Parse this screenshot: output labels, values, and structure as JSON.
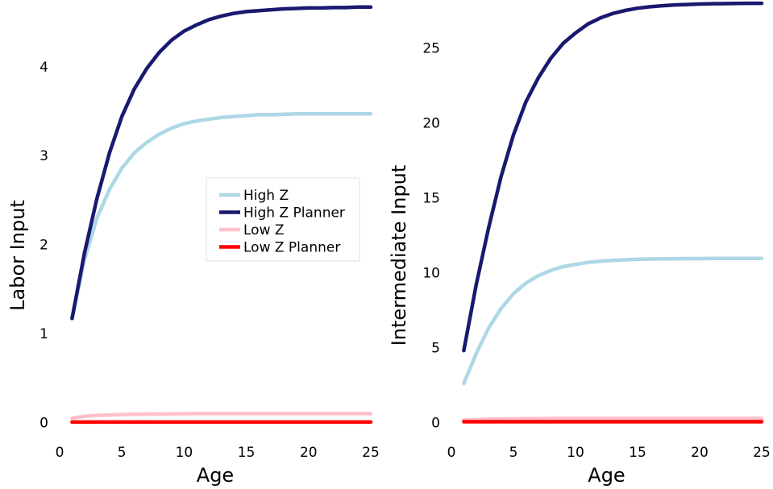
{
  "chart_data": [
    {
      "type": "line",
      "title": "",
      "xlabel": "Age",
      "ylabel": "Labor Input",
      "xlim": [
        0,
        25
      ],
      "ylim": [
        -0.05,
        4.75
      ],
      "xticks": [
        0,
        5,
        10,
        15,
        20,
        25
      ],
      "yticks": [
        0,
        1,
        2,
        3,
        4
      ],
      "grid": false,
      "legend": "center-right",
      "x": [
        1,
        2,
        3,
        4,
        5,
        6,
        7,
        8,
        9,
        10,
        11,
        12,
        13,
        14,
        15,
        16,
        17,
        18,
        19,
        20,
        21,
        22,
        23,
        24,
        25
      ],
      "series": [
        {
          "name": "High Z",
          "color": "#add8e6",
          "values": [
            1.17,
            1.83,
            2.3,
            2.62,
            2.86,
            3.03,
            3.15,
            3.24,
            3.31,
            3.36,
            3.39,
            3.41,
            3.43,
            3.44,
            3.45,
            3.46,
            3.46,
            3.465,
            3.47,
            3.47,
            3.47,
            3.47,
            3.47,
            3.47,
            3.47
          ]
        },
        {
          "name": "High Z Planner",
          "color": "#191970",
          "values": [
            1.17,
            1.91,
            2.52,
            3.03,
            3.44,
            3.75,
            3.98,
            4.16,
            4.3,
            4.4,
            4.47,
            4.53,
            4.57,
            4.6,
            4.62,
            4.63,
            4.64,
            4.65,
            4.655,
            4.66,
            4.66,
            4.665,
            4.665,
            4.67,
            4.67
          ]
        },
        {
          "name": "Low Z",
          "color": "#ffc0cb",
          "values": [
            0.05,
            0.07,
            0.08,
            0.085,
            0.09,
            0.093,
            0.095,
            0.097,
            0.098,
            0.099,
            0.1,
            0.1,
            0.1,
            0.1,
            0.1,
            0.1,
            0.1,
            0.1,
            0.1,
            0.1,
            0.1,
            0.1,
            0.1,
            0.1,
            0.1
          ]
        },
        {
          "name": "Low Z Planner",
          "color": "#ff0000",
          "values": [
            0.005,
            0.005,
            0.005,
            0.005,
            0.005,
            0.005,
            0.005,
            0.005,
            0.005,
            0.005,
            0.005,
            0.005,
            0.005,
            0.005,
            0.005,
            0.005,
            0.005,
            0.005,
            0.005,
            0.005,
            0.005,
            0.005,
            0.005,
            0.005,
            0.005
          ]
        }
      ]
    },
    {
      "type": "line",
      "title": "",
      "xlabel": "Age",
      "ylabel": "Intermediate Input",
      "xlim": [
        0,
        25
      ],
      "ylim": [
        -0.3,
        28.2
      ],
      "xticks": [
        0,
        5,
        10,
        15,
        20,
        25
      ],
      "yticks": [
        0,
        5,
        10,
        15,
        20,
        25
      ],
      "grid": false,
      "legend": "none",
      "x": [
        1,
        2,
        3,
        4,
        5,
        6,
        7,
        8,
        9,
        10,
        11,
        12,
        13,
        14,
        15,
        16,
        17,
        18,
        19,
        20,
        21,
        22,
        23,
        24,
        25
      ],
      "series": [
        {
          "name": "High Z",
          "color": "#add8e6",
          "values": [
            2.6,
            4.6,
            6.3,
            7.6,
            8.6,
            9.3,
            9.8,
            10.15,
            10.4,
            10.55,
            10.68,
            10.76,
            10.82,
            10.86,
            10.89,
            10.91,
            10.92,
            10.93,
            10.94,
            10.94,
            10.95,
            10.95,
            10.95,
            10.95,
            10.95
          ]
        },
        {
          "name": "High Z Planner",
          "color": "#191970",
          "values": [
            4.8,
            9.2,
            13.0,
            16.4,
            19.2,
            21.4,
            23.0,
            24.3,
            25.3,
            26.0,
            26.6,
            27.0,
            27.3,
            27.5,
            27.65,
            27.75,
            27.82,
            27.87,
            27.9,
            27.93,
            27.95,
            27.96,
            27.97,
            27.98,
            27.98
          ]
        },
        {
          "name": "Low Z",
          "color": "#ffc0cb",
          "values": [
            0.15,
            0.2,
            0.22,
            0.24,
            0.25,
            0.26,
            0.26,
            0.27,
            0.27,
            0.27,
            0.27,
            0.27,
            0.27,
            0.27,
            0.27,
            0.27,
            0.27,
            0.27,
            0.27,
            0.27,
            0.27,
            0.27,
            0.27,
            0.27,
            0.27
          ]
        },
        {
          "name": "Low Z Planner",
          "color": "#ff0000",
          "values": [
            0.05,
            0.05,
            0.05,
            0.05,
            0.05,
            0.05,
            0.05,
            0.05,
            0.05,
            0.05,
            0.05,
            0.05,
            0.05,
            0.05,
            0.05,
            0.05,
            0.05,
            0.05,
            0.05,
            0.05,
            0.05,
            0.05,
            0.05,
            0.05,
            0.05
          ]
        }
      ]
    }
  ]
}
